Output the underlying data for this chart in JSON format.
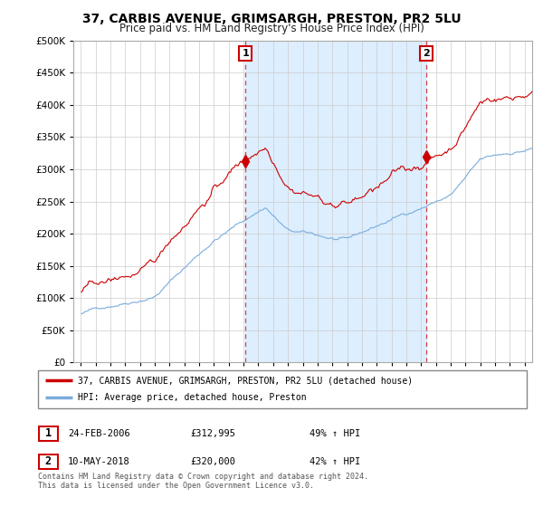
{
  "title": "37, CARBIS AVENUE, GRIMSARGH, PRESTON, PR2 5LU",
  "subtitle": "Price paid vs. HM Land Registry's House Price Index (HPI)",
  "title_fontsize": 10,
  "subtitle_fontsize": 8.5,
  "legend_line1": "37, CARBIS AVENUE, GRIMSARGH, PRESTON, PR2 5LU (detached house)",
  "legend_line2": "HPI: Average price, detached house, Preston",
  "footer": "Contains HM Land Registry data © Crown copyright and database right 2024.\nThis data is licensed under the Open Government Licence v3.0.",
  "transaction1_label": "1",
  "transaction1_date": "24-FEB-2006",
  "transaction1_price": "£312,995",
  "transaction1_hpi": "49% ↑ HPI",
  "transaction1_x": 2006.13,
  "transaction1_y": 312995,
  "transaction2_label": "2",
  "transaction2_date": "10-MAY-2018",
  "transaction2_price": "£320,000",
  "transaction2_hpi": "42% ↑ HPI",
  "transaction2_x": 2018.36,
  "transaction2_y": 320000,
  "line_color_red": "#cc0000",
  "line_color_blue": "#7aacdc",
  "shade_color": "#ddeeff",
  "dashed_color": "#cc4444",
  "ylim": [
    0,
    500000
  ],
  "yticks": [
    0,
    50000,
    100000,
    150000,
    200000,
    250000,
    300000,
    350000,
    400000,
    450000,
    500000
  ],
  "xlim_start": 1994.5,
  "xlim_end": 2025.5,
  "background_color": "#ffffff",
  "grid_color": "#cccccc"
}
